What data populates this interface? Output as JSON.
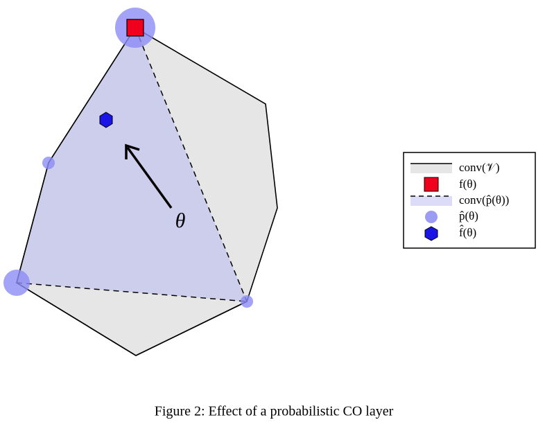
{
  "figure": {
    "theta_label": "θ",
    "legend": [
      "conv(𝒱)",
      "f(θ)",
      "conv(p̂(θ))",
      "p̂(θ)",
      "f̂(θ)"
    ],
    "caption": "Figure 2: Effect of a probabilistic CO layer"
  }
}
